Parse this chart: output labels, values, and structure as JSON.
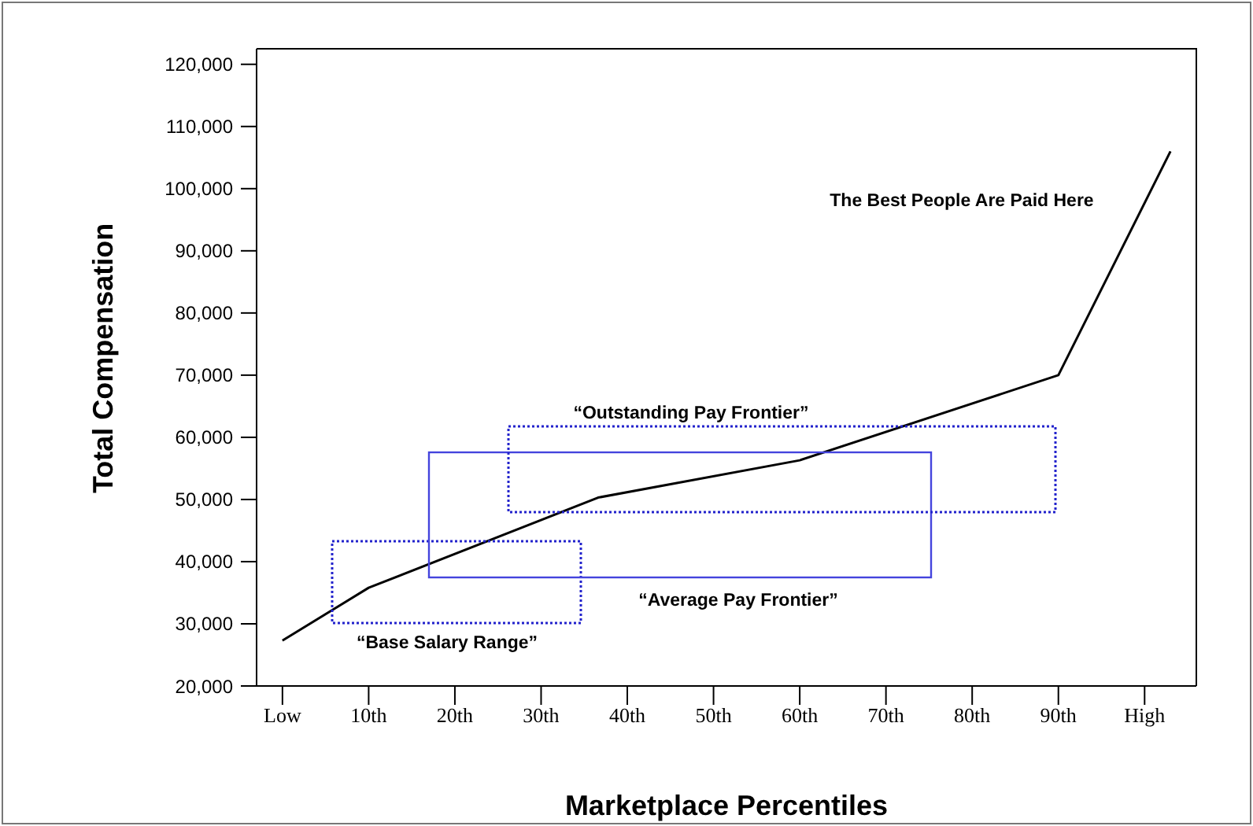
{
  "chart_data": {
    "type": "line",
    "xlabel": "Marketplace Percentiles",
    "ylabel": "Total Compensation",
    "x": [
      0,
      10,
      36.6,
      60,
      90,
      103
    ],
    "series": [
      {
        "color": "#000000",
        "values": [
          27300,
          35800,
          50300,
          56300,
          70000,
          106000
        ]
      }
    ],
    "xlim": [
      -3,
      106
    ],
    "xticks": [
      {
        "value": 0,
        "label": "Low"
      },
      {
        "value": 10,
        "label": "10th"
      },
      {
        "value": 20,
        "label": "20th"
      },
      {
        "value": 30,
        "label": "30th"
      },
      {
        "value": 40,
        "label": "40th"
      },
      {
        "value": 50,
        "label": "50th"
      },
      {
        "value": 60,
        "label": "60th"
      },
      {
        "value": 70,
        "label": "70th"
      },
      {
        "value": 80,
        "label": "80th"
      },
      {
        "value": 90,
        "label": "90th"
      },
      {
        "value": 100,
        "label": "High"
      }
    ],
    "ylim": [
      20000,
      122500
    ],
    "yticks": [
      {
        "value": 20000,
        "label": "20,000"
      },
      {
        "value": 30000,
        "label": "30,000"
      },
      {
        "value": 40000,
        "label": "40,000"
      },
      {
        "value": 50000,
        "label": "50,000"
      },
      {
        "value": 60000,
        "label": "60,000"
      },
      {
        "value": 70000,
        "label": "70,000"
      },
      {
        "value": 80000,
        "label": "80,000"
      },
      {
        "value": 90000,
        "label": "90,000"
      },
      {
        "value": 100000,
        "label": "100,000"
      },
      {
        "value": 110000,
        "label": "110,000"
      },
      {
        "value": 120000,
        "label": "120,000"
      }
    ],
    "annotations": [
      "The Best People Are Paid Here",
      "“Outstanding Pay Frontier”",
      "“Average Pay Frontier”",
      "“Base Salary Range”"
    ],
    "grid": false,
    "legend": false,
    "marker": "none",
    "line_style": "solid"
  }
}
